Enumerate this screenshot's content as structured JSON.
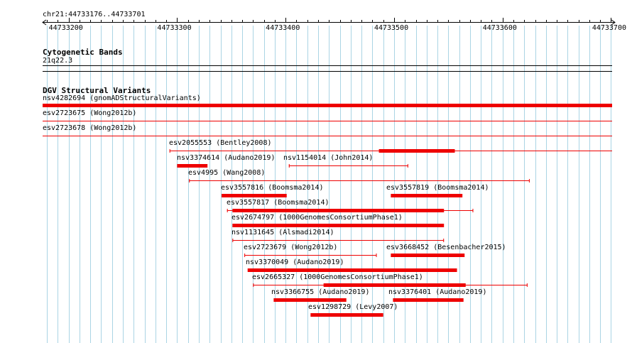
{
  "ruler": {
    "region": "chr21:44733176..44733701",
    "tick_labels": [
      "44733200",
      "44733300",
      "44733400",
      "44733500",
      "44733600",
      "44733700"
    ]
  },
  "cytoband_track": {
    "title": "Cytogenetic Bands",
    "band": "21q22.3"
  },
  "dgv_track": {
    "title": "DGV Structural Variants",
    "features": [
      {
        "label": "nsv4282694 (gnomADStructuralVariants)",
        "start": 44733176,
        "end": 44733701,
        "thin": [],
        "thick": [
          [
            44733176,
            44733701
          ]
        ],
        "color": "#ee0000"
      },
      {
        "label": "esv2723675 (Wong2012b)",
        "start": 44733176,
        "end": 44733701,
        "thin": [
          [
            44733176,
            44733701
          ]
        ],
        "thick": [],
        "color": "#ee0000"
      },
      {
        "label": "esv2723678 (Wong2012b)",
        "start": 44733176,
        "end": 44733701,
        "thin": [
          [
            44733176,
            44733701
          ]
        ],
        "thick": [],
        "color": "#ee0000"
      },
      {
        "label": "esv2055553 (Bentley2008)",
        "start": 44733293,
        "end": 44733701,
        "thin": [
          [
            44733293,
            44733701
          ]
        ],
        "thick": [
          [
            44733486,
            44733556
          ]
        ],
        "color": "#ee0000"
      },
      {
        "label": "nsv3374614 (Audano2019)",
        "start": 44733300,
        "end": 44733328,
        "thin": [],
        "thick": [
          [
            44733300,
            44733328
          ]
        ],
        "color": "#ee0000"
      },
      {
        "label": "nsv1154014 (John2014)",
        "start": 44733403,
        "end": 44733513,
        "thin": [
          [
            44733403,
            44733513
          ]
        ],
        "thick": [],
        "color": "#ee0000"
      },
      {
        "label": "esv4995 (Wang2008)",
        "start": 44733311,
        "end": 44733625,
        "thin": [
          [
            44733311,
            44733625
          ]
        ],
        "thick": [],
        "color": "#ee0000"
      },
      {
        "label": "esv3557816 (Boomsma2014)",
        "start": 44733341,
        "end": 44733401,
        "thin": [],
        "thick": [
          [
            44733341,
            44733401
          ]
        ],
        "color": "#ee0000"
      },
      {
        "label": "esv3557819 (Boomsma2014)",
        "start": 44733497,
        "end": 44733563,
        "thin": [],
        "thick": [
          [
            44733497,
            44733563
          ]
        ],
        "color": "#ee0000"
      },
      {
        "label": "esv3557817 (Boomsma2014)",
        "start": 44733346,
        "end": 44733573,
        "thin": [
          [
            44733346,
            44733573
          ]
        ],
        "thick": [
          [
            44733351,
            44733546
          ]
        ],
        "color": "#ee0000"
      },
      {
        "label": "esv2674797 (1000GenomesConsortiumPhase1)",
        "start": 44733351,
        "end": 44733546,
        "thin": [],
        "thick": [
          [
            44733351,
            44733546
          ]
        ],
        "color": "#ee0000"
      },
      {
        "label": "nsv1131645 (Alsmadi2014)",
        "start": 44733351,
        "end": 44733546,
        "thin": [
          [
            44733351,
            44733546
          ]
        ],
        "thick": [],
        "color": "#ee0000"
      },
      {
        "label": "esv2723679 (Wong2012b)",
        "start": 44733362,
        "end": 44733484,
        "thin": [
          [
            44733362,
            44733484
          ]
        ],
        "thick": [],
        "color": "#ee0000"
      },
      {
        "label": "esv3668452 (Besenbacher2015)",
        "start": 44733497,
        "end": 44733565,
        "thin": [],
        "thick": [
          [
            44733497,
            44733565
          ]
        ],
        "color": "#ee0000"
      },
      {
        "label": "nsv3370049 (Audano2019)",
        "start": 44733365,
        "end": 44733558,
        "thin": [],
        "thick": [
          [
            44733365,
            44733558
          ]
        ],
        "color": "#ee0000"
      },
      {
        "label": "esv2665327 (1000GenomesConsortiumPhase1)",
        "start": 44733370,
        "end": 44733623,
        "thin": [
          [
            44733370,
            44733623
          ]
        ],
        "thick": [
          [
            44733435,
            44733566
          ]
        ],
        "color": "#ee0000"
      },
      {
        "label": "nsv3366755 (Audano2019)",
        "start": 44733389,
        "end": 44733456,
        "thin": [],
        "thick": [
          [
            44733389,
            44733456
          ]
        ],
        "color": "#ee0000"
      },
      {
        "label": "nsv3376401 (Audano2019)",
        "start": 44733499,
        "end": 44733564,
        "thin": [],
        "thick": [
          [
            44733499,
            44733564
          ]
        ],
        "color": "#ee0000"
      },
      {
        "label": "esv1298729 (Levy2007)",
        "start": 44733423,
        "end": 44733490,
        "thin": [],
        "thick": [
          [
            44733423,
            44733490
          ]
        ],
        "color": "#ee0000"
      }
    ]
  },
  "colors": {
    "feature": "#ee0000",
    "grid": "#aad4e4",
    "text": "#000000"
  }
}
